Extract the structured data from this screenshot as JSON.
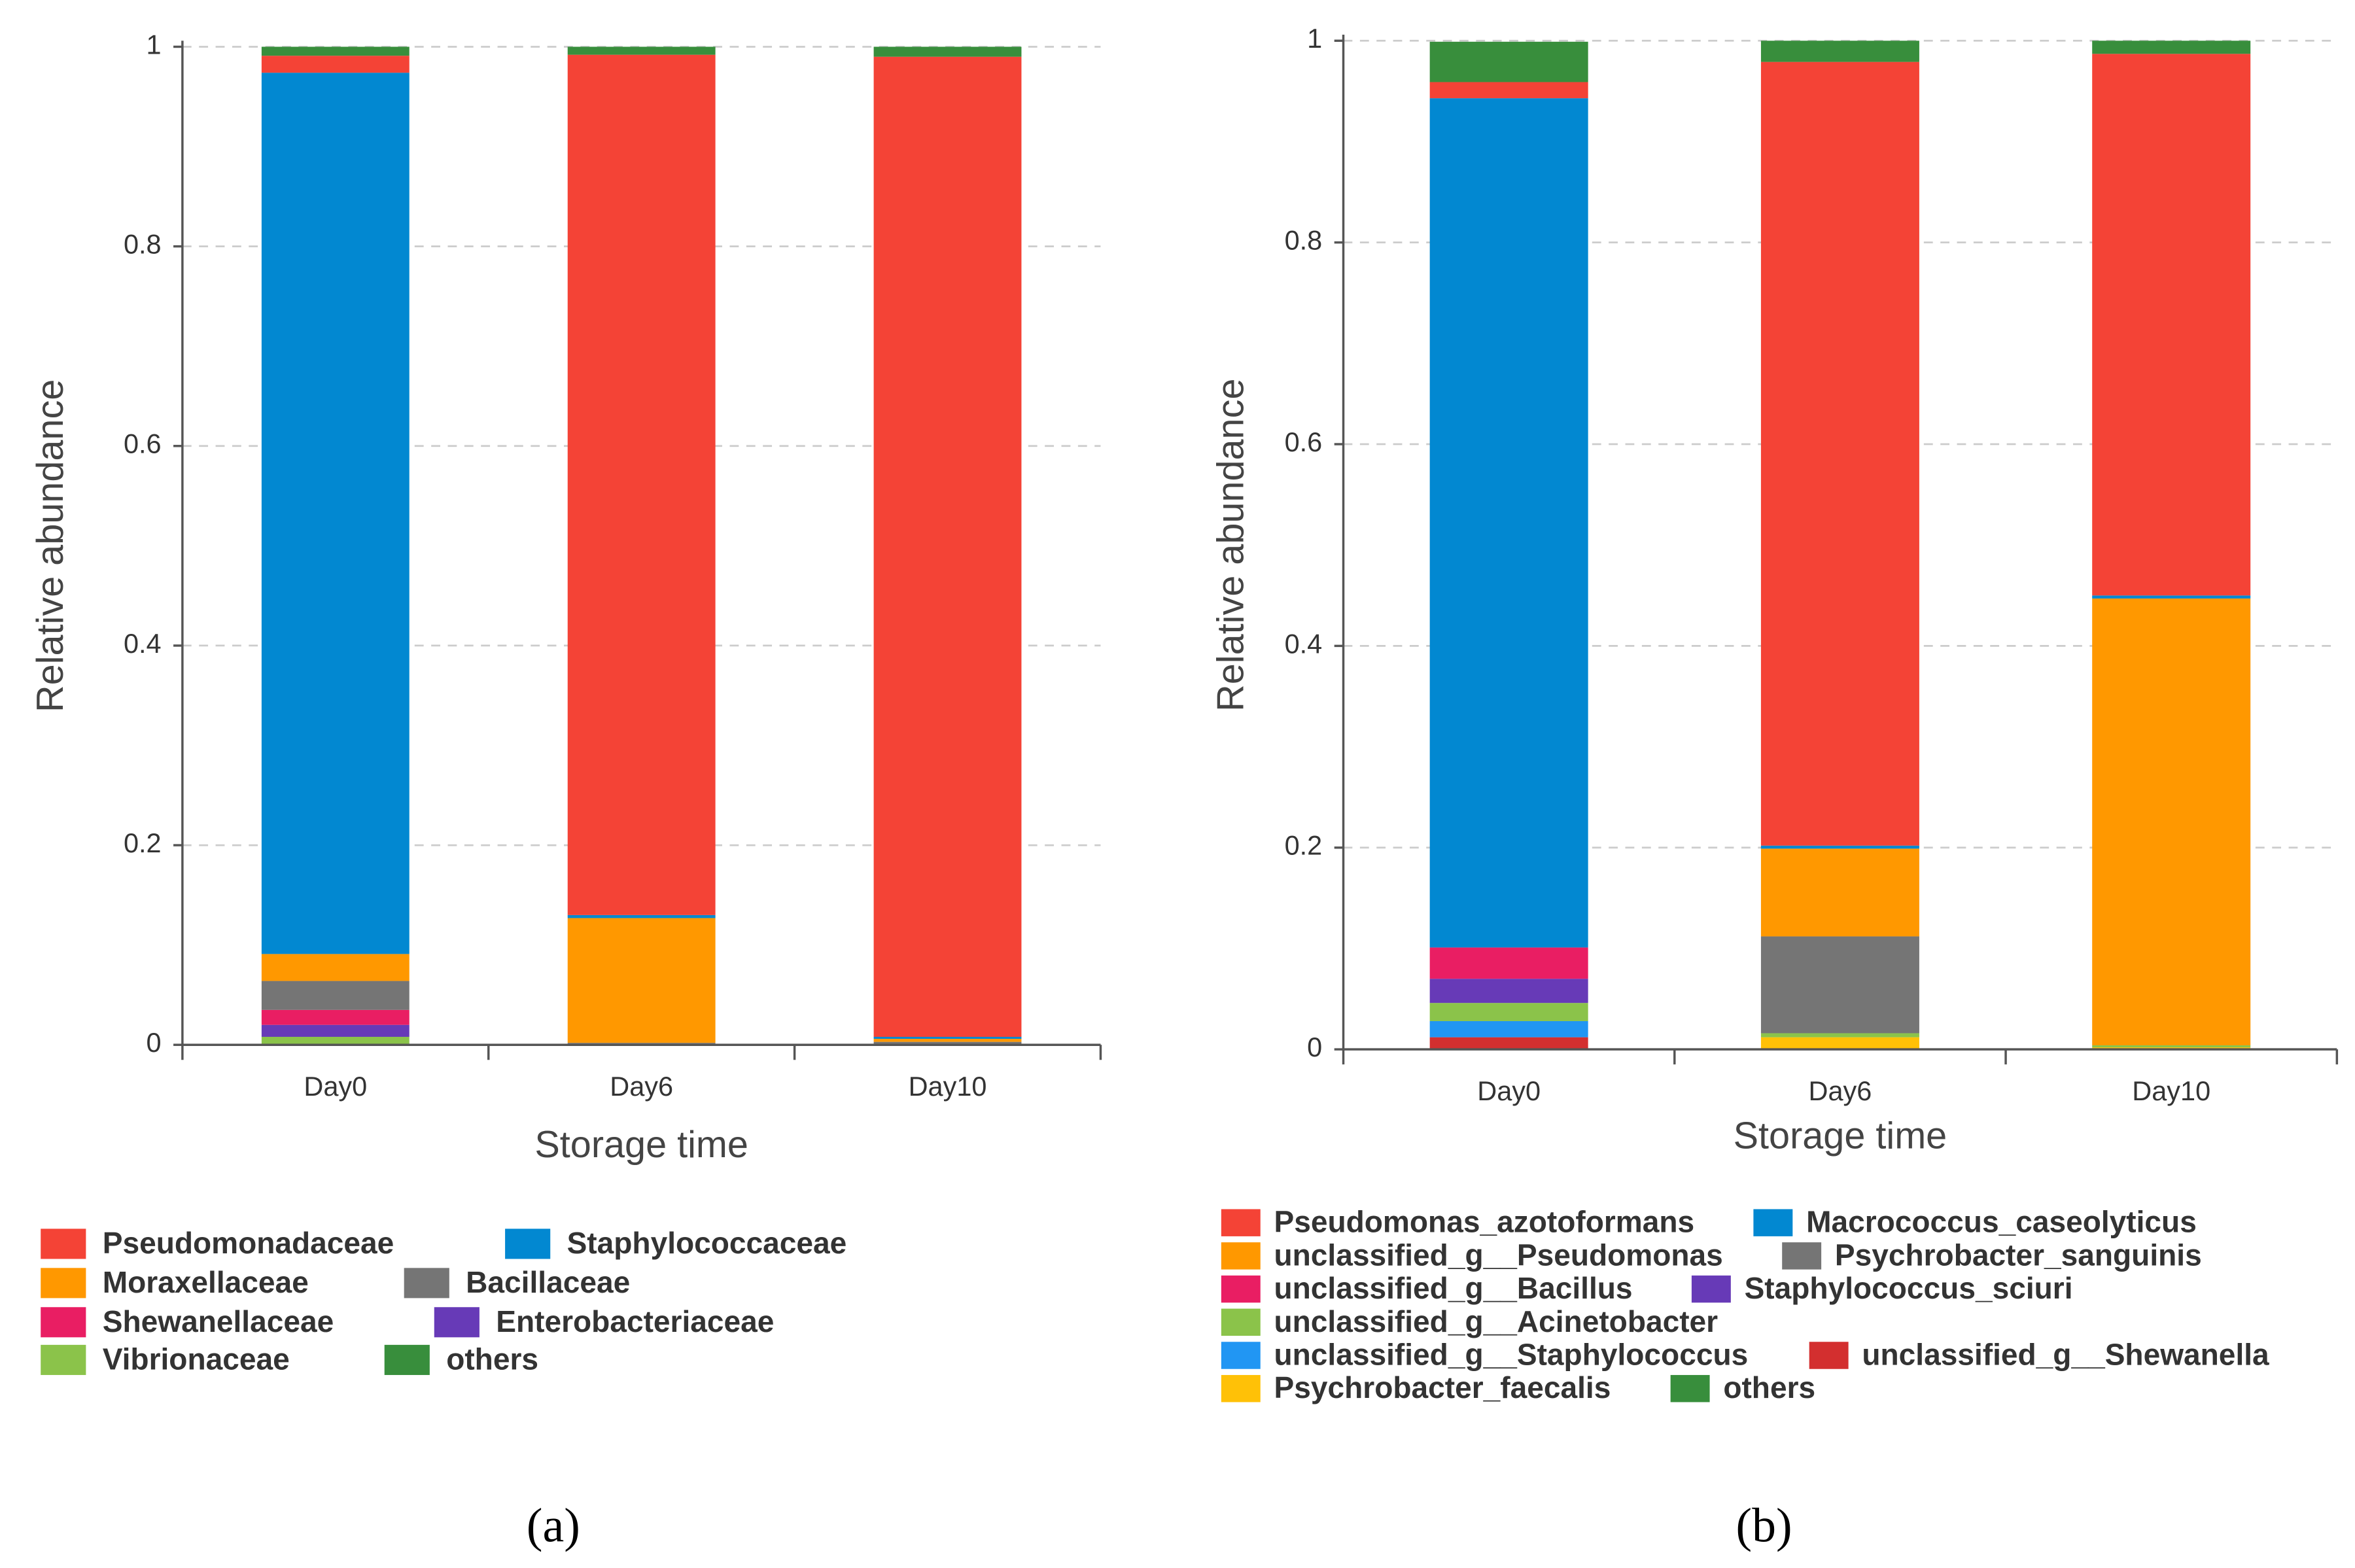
{
  "chart_data": [
    {
      "type": "stacked_bar",
      "label": "(a)",
      "x_label": "Storage time",
      "y_label": "Relative abundance",
      "categories": [
        "Day0",
        "Day6",
        "Day10"
      ],
      "ylim": [
        0,
        1
      ],
      "yticks": [
        0,
        0.2,
        0.4,
        0.6,
        0.8,
        1
      ],
      "grid": true,
      "series": [
        {
          "name": "Vibrionaceae",
          "color": "#8bc34a",
          "values": [
            0.008,
            0,
            0
          ]
        },
        {
          "name": "Enterobacteriaceae",
          "color": "#673ab7",
          "values": [
            0.012,
            0,
            0
          ]
        },
        {
          "name": "Shewanellaceae",
          "color": "#e91e63",
          "values": [
            0.015,
            0,
            0
          ]
        },
        {
          "name": "Bacillaceae",
          "color": "#757575",
          "values": [
            0.029,
            0.002,
            0.003
          ]
        },
        {
          "name": "Moraxellaceae",
          "color": "#ff9800",
          "values": [
            0.027,
            0.125,
            0.003
          ]
        },
        {
          "name": "Staphylococcaceae",
          "color": "#0288d1",
          "values": [
            0.883,
            0.003,
            0.002
          ]
        },
        {
          "name": "Pseudomonadaceae",
          "color": "#f44336",
          "values": [
            0.017,
            0.862,
            0.982
          ]
        },
        {
          "name": "others",
          "color": "#388e3c",
          "values": [
            0.009,
            0.008,
            0.01
          ]
        }
      ]
    },
    {
      "type": "stacked_bar",
      "label": "(b)",
      "x_label": "Storage time",
      "y_label": "Relative abundance",
      "categories": [
        "Day0",
        "Day6",
        "Day10"
      ],
      "ylim": [
        0,
        1
      ],
      "yticks": [
        0,
        0.2,
        0.4,
        0.6,
        0.8,
        1
      ],
      "grid": true,
      "series": [
        {
          "name": "unclassified_g__Shewanella",
          "color": "#d32f2f",
          "values": [
            0.012,
            0,
            0
          ]
        },
        {
          "name": "Psychrobacter_faecalis",
          "color": "#ffc107",
          "values": [
            0,
            0.012,
            0.002
          ]
        },
        {
          "name": "unclassified_g__Staphylococcus",
          "color": "#2196f3",
          "values": [
            0.016,
            0,
            0
          ]
        },
        {
          "name": "unclassified_g__Acinetobacter",
          "color": "#8bc34a",
          "values": [
            0.018,
            0.004,
            0.002
          ]
        },
        {
          "name": "Staphylococcus_sciuri",
          "color": "#673ab7",
          "values": [
            0.024,
            0,
            0
          ]
        },
        {
          "name": "unclassified_g__Bacillus",
          "color": "#e91e63",
          "values": [
            0.031,
            0,
            0
          ]
        },
        {
          "name": "Psychrobacter_sanguinis",
          "color": "#757575",
          "values": [
            0,
            0.096,
            0
          ]
        },
        {
          "name": "unclassified_g__Pseudomonas",
          "color": "#ff9800",
          "values": [
            0,
            0.087,
            0.443
          ]
        },
        {
          "name": "Macrococcus_caseolyticus",
          "color": "#0288d1",
          "values": [
            0.842,
            0.003,
            0.003
          ]
        },
        {
          "name": "Pseudomonas_azotoformans",
          "color": "#f44336",
          "values": [
            0.016,
            0.777,
            0.537
          ]
        },
        {
          "name": "others",
          "color": "#388e3c",
          "values": [
            0.04,
            0.021,
            0.013
          ]
        }
      ]
    }
  ]
}
